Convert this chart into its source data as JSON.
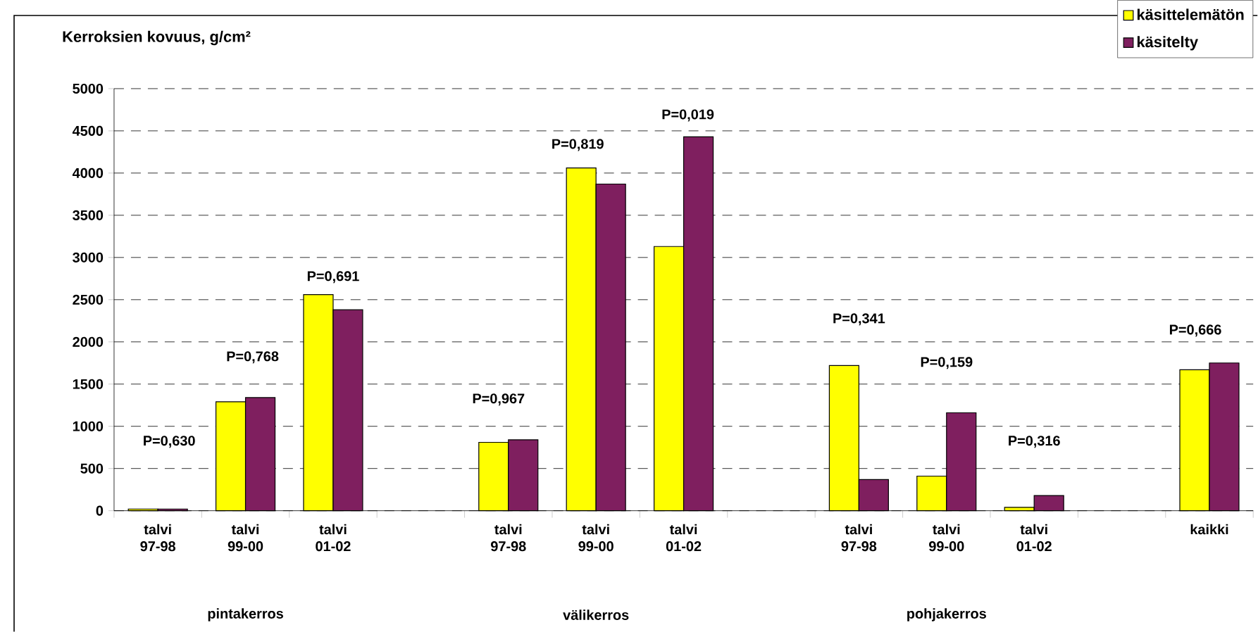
{
  "chart_data": {
    "type": "bar",
    "ylabel": "Kerroksien kovuus, g/cm²",
    "categories": [
      "talvi 97-98",
      "talvi 99-00",
      "talvi 01-02",
      null,
      "talvi 97-98",
      "talvi 99-00",
      "talvi 01-02",
      null,
      "talvi 97-98",
      "talvi 99-00",
      "talvi 01-02",
      null,
      "kaikki"
    ],
    "series": [
      {
        "name": "käsittelemätön",
        "color": "#ffff00",
        "values": [
          20,
          1290,
          2560,
          null,
          810,
          4060,
          3130,
          null,
          1720,
          410,
          40,
          null,
          1670
        ]
      },
      {
        "name": "käsitelty",
        "color": "#7f1f5f",
        "values": [
          20,
          1340,
          2380,
          null,
          840,
          3870,
          4430,
          null,
          370,
          1160,
          180,
          null,
          1750
        ]
      }
    ],
    "ylim": [
      0,
      5000
    ],
    "yticks": [
      0,
      500,
      1000,
      1500,
      2000,
      2500,
      3000,
      3500,
      4000,
      4500,
      5000
    ],
    "grid": "y",
    "legend": "top right",
    "annotations": [
      "P=0,630",
      "P=0,768",
      "P=0,691",
      "P=0,967",
      "P=0,819",
      "P=0,019",
      "P=0,341",
      "P=0,159",
      "P=0,316",
      "P=0,666",
      "pintakerros",
      "välikerros",
      "pohjakerros"
    ]
  }
}
